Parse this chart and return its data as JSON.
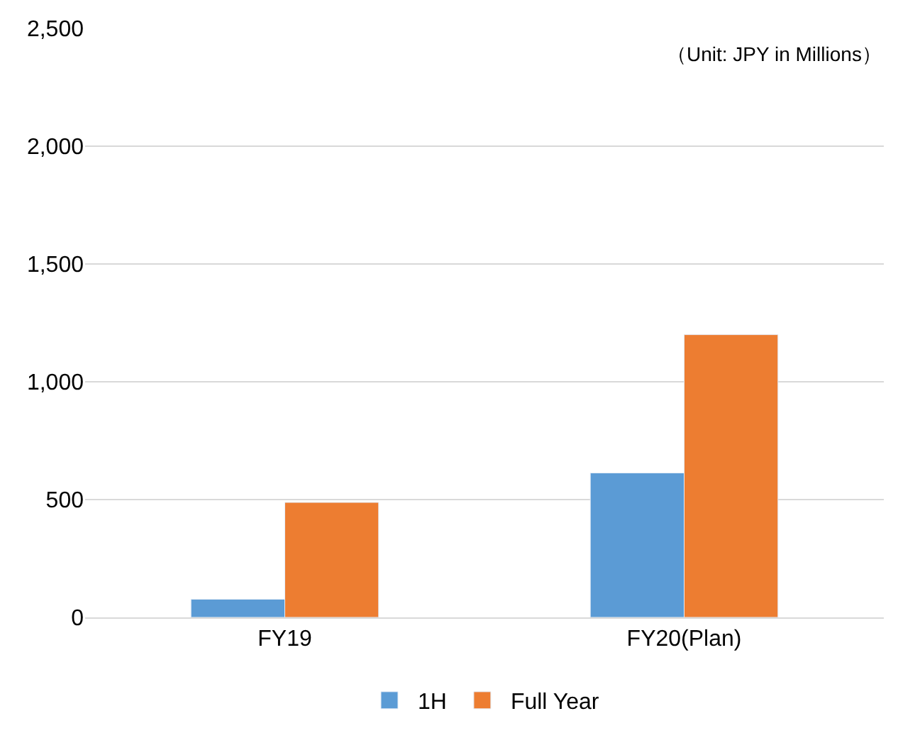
{
  "chart_data": {
    "type": "bar",
    "categories": [
      "FY19",
      "FY20(Plan)"
    ],
    "series": [
      {
        "name": "1H",
        "color": "#5b9bd5",
        "values": [
          77,
          613
        ]
      },
      {
        "name": "Full Year",
        "color": "#ed7d31",
        "values": [
          488,
          1200
        ]
      }
    ],
    "ylim": [
      0,
      2500
    ],
    "yticks": [
      {
        "value": 0,
        "label": "0"
      },
      {
        "value": 500,
        "label": "500"
      },
      {
        "value": 1000,
        "label": "1,000"
      },
      {
        "value": 1500,
        "label": "1,500"
      },
      {
        "value": 2000,
        "label": "2,000"
      },
      {
        "value": 2500,
        "label": "2,500"
      }
    ],
    "grid": "y",
    "legend": "bottom",
    "annotations": [
      "（Unit: JPY in Millions）"
    ]
  }
}
